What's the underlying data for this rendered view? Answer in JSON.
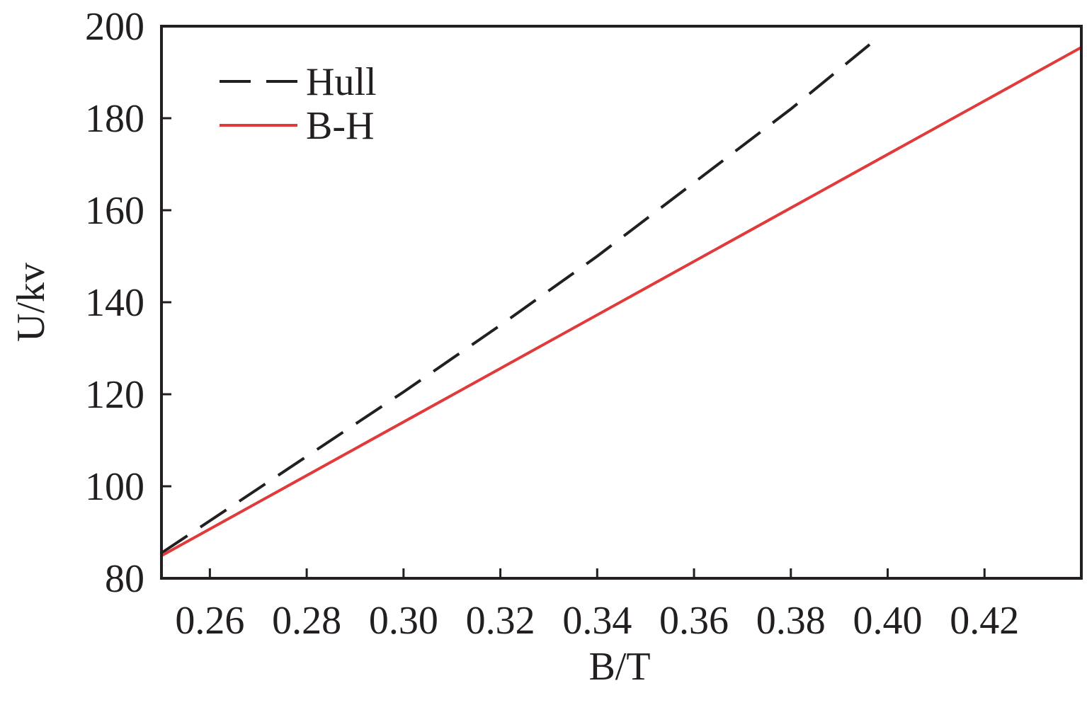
{
  "chart_data": {
    "type": "line",
    "xlabel": "B/T",
    "ylabel": "U/kv",
    "series": [
      {
        "name": "Hull",
        "color": "#231f20",
        "dash": true,
        "x": [
          0.25,
          0.26,
          0.28,
          0.3,
          0.32,
          0.34,
          0.36,
          0.38,
          0.398
        ],
        "values": [
          85.5,
          92.5,
          106.5,
          120.5,
          135,
          150,
          166,
          182,
          197.5
        ]
      },
      {
        "name": "B-H",
        "color": "#e03a3a",
        "dash": false,
        "x": [
          0.25,
          0.44
        ],
        "values": [
          84.9,
          195.4
        ]
      }
    ],
    "xlim": [
      0.25,
      0.44
    ],
    "xticks": [
      {
        "value": 0.26,
        "label": "0.26"
      },
      {
        "value": 0.28,
        "label": "0.28"
      },
      {
        "value": 0.3,
        "label": "0.30"
      },
      {
        "value": 0.32,
        "label": "0.32"
      },
      {
        "value": 0.34,
        "label": "0.34"
      },
      {
        "value": 0.36,
        "label": "0.36"
      },
      {
        "value": 0.38,
        "label": "0.38"
      },
      {
        "value": 0.4,
        "label": "0.40"
      },
      {
        "value": 0.42,
        "label": "0.42"
      }
    ],
    "ylim": [
      80,
      200
    ],
    "yticks": [
      80,
      100,
      120,
      140,
      160,
      180,
      200
    ],
    "legend": "upper-left"
  }
}
